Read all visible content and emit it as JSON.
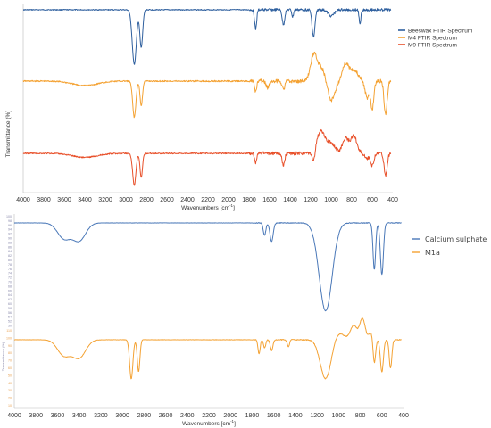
{
  "chart_data": [
    {
      "type": "line",
      "xlabel": "Wavenumbers [cm",
      "xlabel_sup": "-1",
      "xlabel_close": "]",
      "ylabel": "Transmittance (%)",
      "xlim": [
        4000,
        400
      ],
      "x_reversed": true,
      "xticks": [
        4000,
        3800,
        3600,
        3400,
        3200,
        3000,
        2800,
        2600,
        2400,
        2200,
        2000,
        1800,
        1600,
        1400,
        1200,
        1000,
        800,
        600,
        400
      ],
      "legend_position": "right",
      "grid": false,
      "series": [
        {
          "name": "Beeswax FTIR Spectrum",
          "color": "#2e5f9e",
          "baseline": 0.0,
          "peaks": [
            [
              2918,
              0.9,
              20
            ],
            [
              2850,
              0.62,
              14
            ],
            [
              1736,
              0.32,
              10
            ],
            [
              1465,
              0.25,
              12
            ],
            [
              1375,
              0.12,
              8
            ],
            [
              1172,
              0.45,
              14
            ],
            [
              1000,
              0.1,
              30
            ],
            [
              720,
              0.25,
              8
            ]
          ],
          "noise": 0.03
        },
        {
          "name": "M4 FTIR Spectrum",
          "color": "#f4a233",
          "baseline": 0.0,
          "peaks": [
            [
              3400,
              0.08,
              120
            ],
            [
              2918,
              0.65,
              16
            ],
            [
              2850,
              0.45,
              12
            ],
            [
              1736,
              0.2,
              10
            ],
            [
              1620,
              0.12,
              15
            ],
            [
              1465,
              0.15,
              12
            ],
            [
              1172,
              -0.45,
              30
            ],
            [
              1100,
              -0.25,
              40
            ],
            [
              1000,
              0.35,
              35
            ],
            [
              860,
              -0.3,
              30
            ],
            [
              780,
              -0.2,
              40
            ],
            [
              650,
              0.3,
              20
            ],
            [
              600,
              0.5,
              15
            ],
            [
              470,
              0.6,
              15
            ]
          ],
          "noise": 0.05
        },
        {
          "name": "M9 FTIR Spectrum",
          "color": "#e8502a",
          "baseline": 0.0,
          "peaks": [
            [
              3400,
              0.08,
              120
            ],
            [
              2918,
              0.65,
              16
            ],
            [
              2850,
              0.5,
              12
            ],
            [
              1736,
              0.2,
              10
            ],
            [
              1465,
              0.25,
              12
            ],
            [
              1172,
              0.25,
              14
            ],
            [
              1100,
              -0.45,
              40
            ],
            [
              1000,
              -0.2,
              40
            ],
            [
              860,
              -0.3,
              30
            ],
            [
              780,
              -0.35,
              30
            ],
            [
              650,
              0.1,
              20
            ],
            [
              600,
              0.25,
              15
            ],
            [
              470,
              0.45,
              15
            ]
          ],
          "noise": 0.05
        }
      ]
    },
    {
      "type": "line",
      "xlabel": "Wavenumbers [cm",
      "xlabel_sup": "-1",
      "xlabel_close": "]",
      "ylabel": "Transmittance (%)",
      "xlim": [
        4000,
        400
      ],
      "x_reversed": true,
      "xticks": [
        4000,
        3800,
        3600,
        3400,
        3200,
        3000,
        2800,
        2600,
        2400,
        2200,
        2000,
        1800,
        1600,
        1400,
        1200,
        1000,
        800,
        600,
        400
      ],
      "legend_position": "right",
      "grid": false,
      "yticks_upper": [
        "100",
        "98",
        "96",
        "94",
        "92",
        "90",
        "88",
        "86",
        "84",
        "82",
        "80",
        "78",
        "76",
        "74",
        "72",
        "70",
        "68",
        "66",
        "64",
        "62",
        "60",
        "58",
        "56",
        "54",
        "52",
        "50"
      ],
      "yticks_lower": [
        "110",
        "100",
        "90",
        "80",
        "70",
        "60",
        "50",
        "40",
        "30",
        "20",
        "10"
      ],
      "series": [
        {
          "name": "Calcium sulphate",
          "color": "#4a78b8",
          "peaks": [
            [
              3540,
              0.15,
              60
            ],
            [
              3400,
              0.17,
              60
            ],
            [
              1685,
              0.12,
              12
            ],
            [
              1620,
              0.18,
              15
            ],
            [
              1120,
              0.85,
              60
            ],
            [
              670,
              0.45,
              12
            ],
            [
              600,
              0.5,
              14
            ]
          ],
          "noise": 0.005
        },
        {
          "name": "M1a",
          "color": "#f4a233",
          "peaks": [
            [
              3540,
              0.22,
              60
            ],
            [
              3400,
              0.25,
              60
            ],
            [
              2918,
              0.55,
              15
            ],
            [
              2850,
              0.45,
              12
            ],
            [
              1736,
              0.2,
              10
            ],
            [
              1685,
              0.12,
              10
            ],
            [
              1620,
              0.15,
              12
            ],
            [
              1465,
              0.1,
              10
            ],
            [
              1120,
              0.55,
              50
            ],
            [
              1000,
              -0.1,
              50
            ],
            [
              860,
              -0.2,
              30
            ],
            [
              780,
              -0.3,
              25
            ],
            [
              700,
              -0.1,
              20
            ],
            [
              670,
              0.35,
              12
            ],
            [
              600,
              0.45,
              14
            ],
            [
              520,
              0.4,
              12
            ]
          ],
          "noise": 0.01
        }
      ]
    }
  ]
}
